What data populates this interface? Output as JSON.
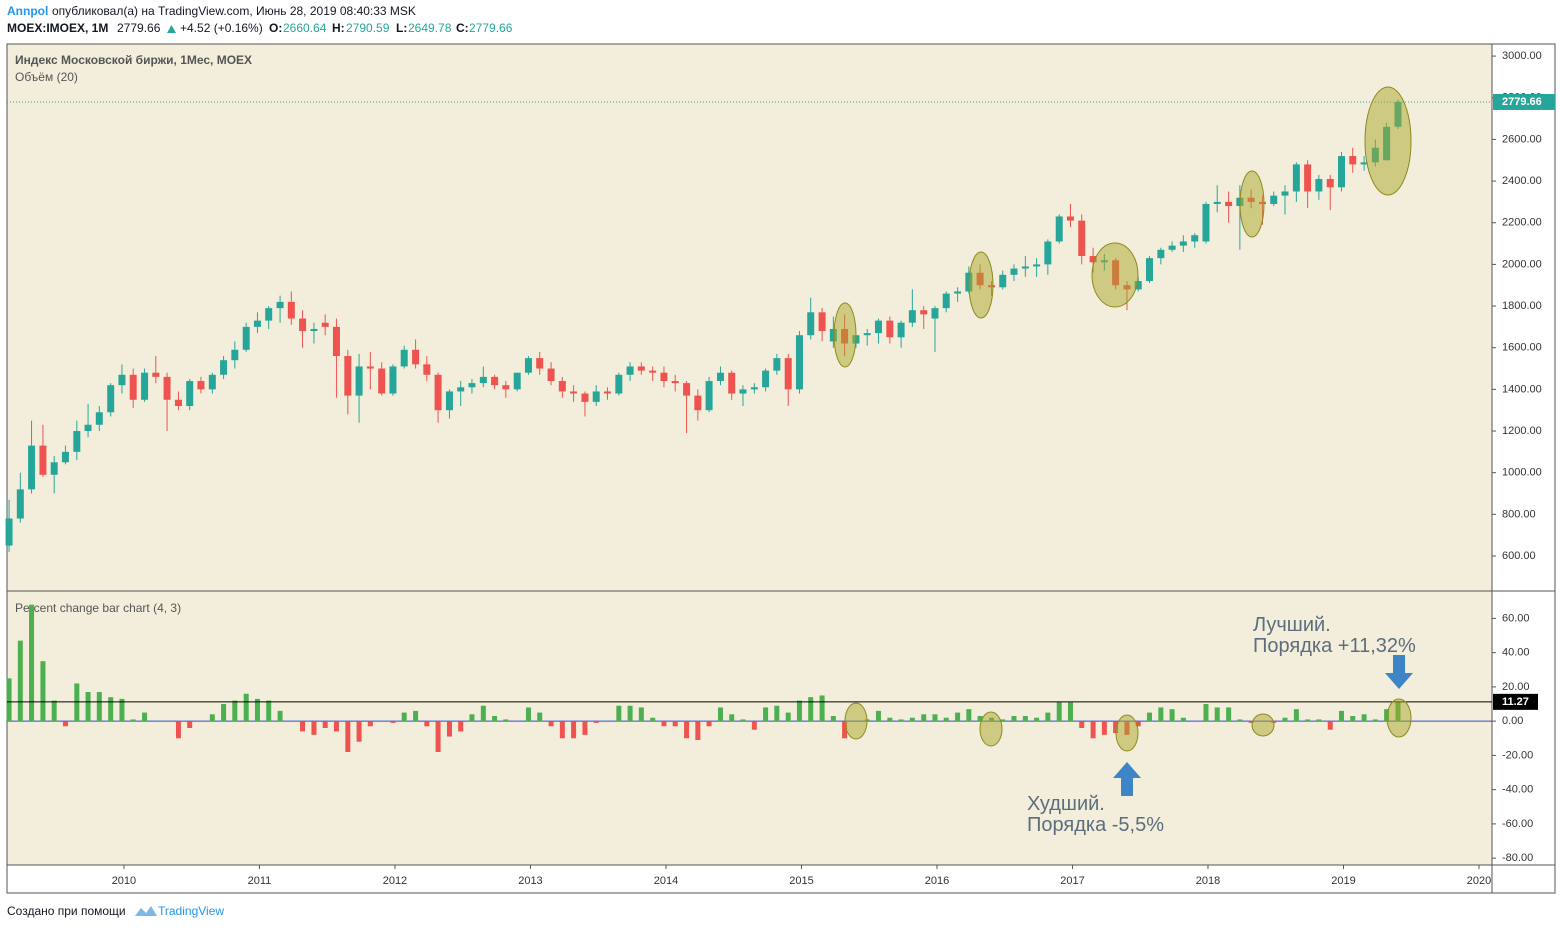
{
  "header": {
    "author": "Annpol",
    "published": "опубликовал(а) на TradingView.com, Июнь 28, 2019 08:40:33 MSK",
    "symbol": "MOEX:IMOEX, 1M",
    "change": "+4.52 (+0.16%)",
    "ohlc_labels": [
      "O:",
      "H:",
      "L:",
      "C:"
    ]
  },
  "footer": {
    "text": "Создано при помощи",
    "brand": "TradingView"
  },
  "annotations": [
    {
      "title": "Лучший.",
      "text": "Порядка +11,32%"
    },
    {
      "title": "Худший.",
      "text": "Порядка -5,5%"
    }
  ],
  "chart_data": [
    {
      "type": "candlestick",
      "title": "Индекс Московской биржи, 1Мес, MOEX",
      "subtitle": "Объём (20)",
      "up_color": "#26a69a",
      "down_color": "#ef5350",
      "xlim": [
        2009.137,
        2020.096
      ],
      "xticks": [
        2010,
        2011,
        2012,
        2013,
        2014,
        2015,
        2016,
        2017,
        2018,
        2019,
        2020
      ],
      "ylim": [
        432,
        3058
      ],
      "yticks": [
        {
          "value": 600,
          "label": "600.00"
        },
        {
          "value": 800,
          "label": "800.00"
        },
        {
          "value": 1000,
          "label": "1000.00"
        },
        {
          "value": 1200,
          "label": "1200.00"
        },
        {
          "value": 1400,
          "label": "1400.00"
        },
        {
          "value": 1600,
          "label": "1600.00"
        },
        {
          "value": 1800,
          "label": "1800.00"
        },
        {
          "value": 2000,
          "label": "2000.00"
        },
        {
          "value": 2200,
          "label": "2200.00"
        },
        {
          "value": 2400,
          "label": "2400.00"
        },
        {
          "value": 2600,
          "label": "2600.00"
        },
        {
          "value": 2800,
          "label": "2800.00"
        },
        {
          "value": 3000,
          "label": "3000.00"
        }
      ],
      "x": [
        2009.167,
        2009.25,
        2009.333,
        2009.417,
        2009.5,
        2009.583,
        2009.667,
        2009.75,
        2009.833,
        2009.917,
        2010,
        2010.083,
        2010.167,
        2010.25,
        2010.333,
        2010.417,
        2010.5,
        2010.583,
        2010.667,
        2010.75,
        2010.833,
        2010.917,
        2011,
        2011.083,
        2011.167,
        2011.25,
        2011.333,
        2011.417,
        2011.5,
        2011.583,
        2011.667,
        2011.75,
        2011.833,
        2011.917,
        2012,
        2012.083,
        2012.167,
        2012.25,
        2012.333,
        2012.417,
        2012.5,
        2012.583,
        2012.667,
        2012.75,
        2012.833,
        2012.917,
        2013,
        2013.083,
        2013.167,
        2013.25,
        2013.333,
        2013.417,
        2013.5,
        2013.583,
        2013.667,
        2013.75,
        2013.833,
        2013.917,
        2014,
        2014.083,
        2014.167,
        2014.25,
        2014.333,
        2014.417,
        2014.5,
        2014.583,
        2014.667,
        2014.75,
        2014.833,
        2014.917,
        2015,
        2015.083,
        2015.167,
        2015.25,
        2015.333,
        2015.417,
        2015.5,
        2015.583,
        2015.667,
        2015.75,
        2015.833,
        2015.917,
        2016,
        2016.083,
        2016.167,
        2016.25,
        2016.333,
        2016.417,
        2016.5,
        2016.583,
        2016.667,
        2016.75,
        2016.833,
        2016.917,
        2017,
        2017.083,
        2017.167,
        2017.25,
        2017.333,
        2017.417,
        2017.5,
        2017.583,
        2017.667,
        2017.75,
        2017.833,
        2017.917,
        2018,
        2018.083,
        2018.167,
        2018.25,
        2018.333,
        2018.417,
        2018.5,
        2018.583,
        2018.667,
        2018.75,
        2018.833,
        2018.917,
        2019,
        2019.083,
        2019.167,
        2019.25,
        2019.333,
        2019.417
      ],
      "open": [
        650,
        780,
        920,
        1130,
        990,
        1050,
        1100,
        1200,
        1230,
        1290,
        1420,
        1470,
        1350,
        1480,
        1460,
        1350,
        1320,
        1440,
        1400,
        1470,
        1540,
        1590,
        1700,
        1730,
        1790,
        1820,
        1740,
        1680,
        1720,
        1700,
        1560,
        1370,
        1510,
        1500,
        1380,
        1510,
        1590,
        1520,
        1470,
        1300,
        1390,
        1410,
        1430,
        1460,
        1420,
        1400,
        1480,
        1550,
        1500,
        1440,
        1390,
        1380,
        1340,
        1390,
        1380,
        1470,
        1510,
        1490,
        1480,
        1440,
        1430,
        1370,
        1300,
        1440,
        1480,
        1380,
        1400,
        1410,
        1490,
        1550,
        1400,
        1660,
        1770,
        1630,
        1690,
        1620,
        1660,
        1670,
        1730,
        1650,
        1720,
        1780,
        1740,
        1790,
        1860,
        1870,
        1960,
        1900,
        1890,
        1950,
        1980,
        1990,
        2000,
        2110,
        2230,
        2210,
        2040,
        2010,
        2020,
        1900,
        1880,
        1920,
        2030,
        2070,
        2090,
        2110,
        2110,
        2290,
        2300,
        2280,
        2320,
        2300,
        2290,
        2330,
        2350,
        2480,
        2350,
        2410,
        2370,
        2520,
        2480,
        2490,
        2500,
        2660.64
      ],
      "high": [
        870,
        1000,
        1250,
        1230,
        1080,
        1130,
        1250,
        1330,
        1320,
        1430,
        1520,
        1500,
        1500,
        1560,
        1480,
        1390,
        1450,
        1460,
        1480,
        1560,
        1630,
        1720,
        1770,
        1800,
        1850,
        1870,
        1780,
        1720,
        1760,
        1740,
        1590,
        1570,
        1580,
        1530,
        1520,
        1610,
        1640,
        1560,
        1480,
        1400,
        1440,
        1450,
        1510,
        1470,
        1440,
        1480,
        1560,
        1580,
        1530,
        1460,
        1420,
        1390,
        1420,
        1410,
        1480,
        1530,
        1530,
        1510,
        1510,
        1470,
        1440,
        1400,
        1460,
        1510,
        1490,
        1420,
        1430,
        1500,
        1570,
        1570,
        1680,
        1840,
        1790,
        1750,
        1760,
        1670,
        1690,
        1740,
        1750,
        1730,
        1880,
        1800,
        1800,
        1870,
        1890,
        1990,
        2000,
        1920,
        1970,
        2000,
        2040,
        2030,
        2120,
        2240,
        2290,
        2240,
        2080,
        2050,
        2030,
        1920,
        1940,
        2040,
        2080,
        2110,
        2140,
        2150,
        2300,
        2380,
        2350,
        2380,
        2360,
        2330,
        2350,
        2380,
        2490,
        2500,
        2430,
        2430,
        2540,
        2560,
        2520,
        2600,
        2680,
        2790.59
      ],
      "low": [
        620,
        760,
        900,
        980,
        900,
        1040,
        1060,
        1170,
        1200,
        1270,
        1380,
        1310,
        1340,
        1430,
        1200,
        1300,
        1300,
        1380,
        1380,
        1450,
        1500,
        1580,
        1670,
        1690,
        1720,
        1710,
        1600,
        1620,
        1660,
        1360,
        1280,
        1240,
        1400,
        1370,
        1370,
        1500,
        1500,
        1440,
        1240,
        1260,
        1320,
        1380,
        1410,
        1400,
        1360,
        1390,
        1470,
        1470,
        1420,
        1360,
        1340,
        1270,
        1320,
        1350,
        1370,
        1440,
        1470,
        1440,
        1410,
        1390,
        1190,
        1250,
        1290,
        1420,
        1350,
        1320,
        1380,
        1390,
        1470,
        1320,
        1380,
        1640,
        1630,
        1600,
        1560,
        1600,
        1610,
        1620,
        1620,
        1600,
        1700,
        1690,
        1580,
        1770,
        1820,
        1860,
        1880,
        1850,
        1880,
        1920,
        1940,
        1940,
        1950,
        2100,
        2180,
        2000,
        1960,
        1970,
        1880,
        1780,
        1870,
        1910,
        2000,
        2060,
        2060,
        2080,
        2100,
        2250,
        2200,
        2070,
        2270,
        2190,
        2280,
        2240,
        2300,
        2270,
        2310,
        2260,
        2350,
        2440,
        2450,
        2470,
        2500,
        2649.78
      ],
      "close": [
        780,
        920,
        1130,
        990,
        1050,
        1100,
        1200,
        1230,
        1290,
        1420,
        1470,
        1350,
        1480,
        1460,
        1350,
        1320,
        1440,
        1400,
        1470,
        1540,
        1590,
        1700,
        1730,
        1790,
        1820,
        1740,
        1680,
        1690,
        1700,
        1560,
        1370,
        1510,
        1500,
        1380,
        1510,
        1590,
        1520,
        1470,
        1300,
        1390,
        1410,
        1430,
        1460,
        1420,
        1400,
        1480,
        1550,
        1500,
        1440,
        1390,
        1380,
        1340,
        1390,
        1380,
        1470,
        1510,
        1490,
        1480,
        1440,
        1430,
        1370,
        1300,
        1440,
        1480,
        1380,
        1400,
        1410,
        1490,
        1550,
        1400,
        1660,
        1770,
        1680,
        1690,
        1620,
        1660,
        1670,
        1730,
        1650,
        1720,
        1780,
        1760,
        1790,
        1860,
        1870,
        1960,
        1900,
        1890,
        1950,
        1980,
        1990,
        2000,
        2110,
        2230,
        2210,
        2040,
        2010,
        2020,
        1900,
        1880,
        1920,
        2030,
        2070,
        2090,
        2110,
        2140,
        2290,
        2300,
        2280,
        2320,
        2300,
        2290,
        2330,
        2350,
        2480,
        2350,
        2410,
        2370,
        2520,
        2480,
        2490,
        2560,
        2660,
        2779.66
      ]
    },
    {
      "type": "bar",
      "title": "Percent change bar chart (4, 3)",
      "up_color": "#4caf50",
      "down_color": "#ef5350",
      "ylim": [
        -84,
        76
      ],
      "yticks": [
        {
          "value": -80,
          "label": "-80.00"
        },
        {
          "value": -60,
          "label": "-60.00"
        },
        {
          "value": -40,
          "label": "-40.00"
        },
        {
          "value": -20,
          "label": "-20.00"
        },
        {
          "value": 0,
          "label": "0.00"
        },
        {
          "value": 20,
          "label": "20.00"
        },
        {
          "value": 40,
          "label": "40.00"
        },
        {
          "value": 60,
          "label": "60.00"
        }
      ],
      "values": [
        25,
        47,
        68,
        35,
        12,
        -3,
        22,
        17,
        17,
        14,
        13,
        1,
        5,
        0,
        0,
        -10,
        -4,
        0,
        4,
        10,
        12,
        16,
        13,
        12,
        6,
        0,
        -6,
        -8,
        -4,
        -6,
        -18,
        -12,
        -3,
        0,
        -1,
        5,
        6,
        -3,
        -18,
        -9,
        -6,
        4,
        9,
        3,
        1,
        0,
        8,
        5,
        -3,
        -10,
        -10,
        -8,
        -1,
        0,
        9,
        9,
        8,
        2,
        -3,
        -3,
        -10,
        -11,
        -3,
        8,
        4,
        1,
        -5,
        8,
        9,
        5,
        12,
        14,
        15,
        3,
        -10,
        0,
        1,
        6,
        2,
        1,
        2,
        4,
        4,
        2,
        5,
        7,
        3,
        2,
        1,
        3,
        3,
        2,
        5,
        11,
        11,
        -4,
        -10,
        -8,
        -7,
        -8,
        -3,
        5,
        8,
        7,
        2,
        0,
        10,
        8,
        8,
        1,
        -1,
        0,
        -1,
        2,
        7,
        1,
        1,
        -5,
        6,
        3,
        4,
        1,
        7,
        11.27
      ]
    }
  ]
}
